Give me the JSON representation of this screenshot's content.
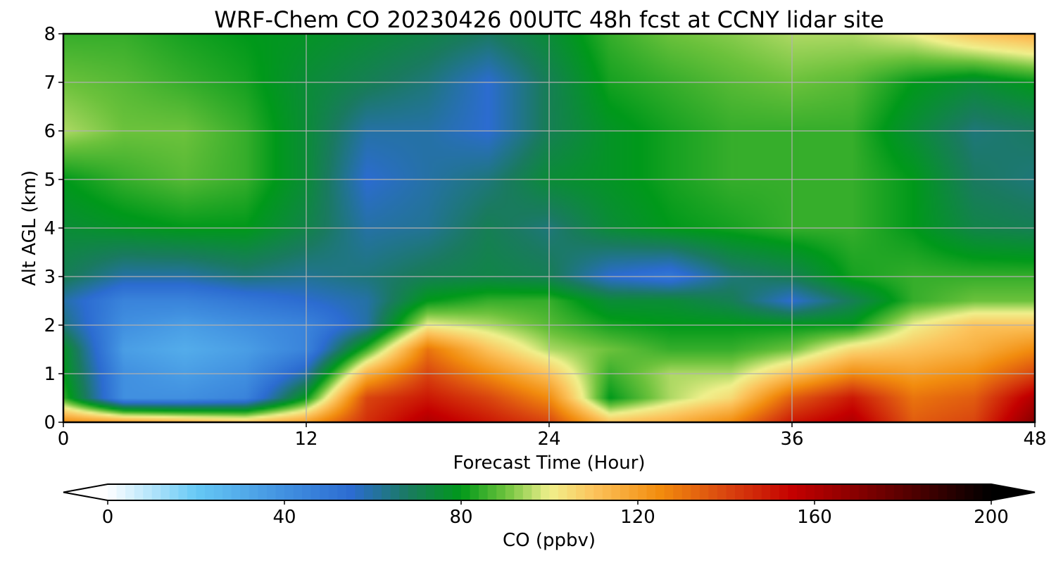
{
  "chart_data": {
    "type": "heatmap",
    "title": "WRF-Chem CO  20230426 00UTC 48h fcst at CCNY lidar site",
    "xlabel": "Forecast Time (Hour)",
    "ylabel": "Alt AGL (km)",
    "xlim": [
      0,
      48
    ],
    "ylim": [
      0,
      8
    ],
    "xticks": [
      0,
      12,
      24,
      36,
      48
    ],
    "yticks": [
      0,
      1,
      2,
      3,
      4,
      5,
      6,
      7,
      8
    ],
    "grid": true,
    "x": [
      0,
      3,
      6,
      9,
      12,
      15,
      18,
      21,
      24,
      27,
      30,
      33,
      36,
      39,
      42,
      45,
      48
    ],
    "y": [
      0,
      0.5,
      1,
      1.5,
      2,
      2.5,
      3,
      4,
      5,
      6,
      7,
      8
    ],
    "z": [
      [
        125,
        120,
        115,
        110,
        120,
        145,
        160,
        150,
        140,
        110,
        115,
        125,
        150,
        160,
        135,
        140,
        170
      ],
      [
        85,
        40,
        40,
        45,
        80,
        140,
        150,
        140,
        125,
        80,
        95,
        105,
        135,
        150,
        130,
        135,
        160
      ],
      [
        80,
        40,
        35,
        40,
        60,
        115,
        140,
        125,
        110,
        85,
        95,
        95,
        110,
        125,
        120,
        125,
        140
      ],
      [
        78,
        35,
        30,
        35,
        45,
        85,
        130,
        110,
        95,
        90,
        85,
        85,
        90,
        105,
        110,
        115,
        125
      ],
      [
        65,
        40,
        35,
        40,
        45,
        60,
        100,
        95,
        88,
        82,
        80,
        80,
        80,
        80,
        100,
        110,
        110
      ],
      [
        60,
        45,
        45,
        50,
        55,
        60,
        80,
        85,
        85,
        75,
        75,
        70,
        55,
        70,
        85,
        90,
        90
      ],
      [
        70,
        60,
        60,
        65,
        62,
        65,
        70,
        72,
        70,
        55,
        50,
        65,
        70,
        82,
        85,
        85,
        85
      ],
      [
        75,
        78,
        80,
        80,
        72,
        60,
        62,
        70,
        65,
        75,
        80,
        82,
        85,
        85,
        80,
        72,
        70
      ],
      [
        80,
        85,
        88,
        85,
        75,
        55,
        60,
        65,
        75,
        78,
        82,
        85,
        85,
        85,
        80,
        68,
        65
      ],
      [
        95,
        90,
        90,
        85,
        75,
        60,
        60,
        55,
        70,
        78,
        82,
        85,
        85,
        85,
        75,
        65,
        68
      ],
      [
        90,
        88,
        85,
        82,
        75,
        70,
        65,
        55,
        70,
        82,
        85,
        88,
        90,
        88,
        80,
        75,
        80
      ],
      [
        85,
        85,
        82,
        80,
        78,
        75,
        72,
        68,
        75,
        85,
        90,
        92,
        95,
        95,
        100,
        110,
        115
      ]
    ],
    "colorbar": {
      "label": "CO  (ppbv)",
      "min": 0,
      "max": 200,
      "ticks": [
        0,
        40,
        80,
        120,
        160,
        200
      ],
      "extend": "both",
      "colormap": [
        [
          0,
          "#ffffff"
        ],
        [
          20,
          "#66c9f5"
        ],
        [
          40,
          "#4190e0"
        ],
        [
          55,
          "#2c6cd1"
        ],
        [
          68,
          "#1a7a60"
        ],
        [
          80,
          "#00991a"
        ],
        [
          90,
          "#6cc23c"
        ],
        [
          100,
          "#f0f08c"
        ],
        [
          110,
          "#fcc35c"
        ],
        [
          125,
          "#f28c0e"
        ],
        [
          140,
          "#d9450f"
        ],
        [
          155,
          "#c40000"
        ],
        [
          175,
          "#700000"
        ],
        [
          200,
          "#000000"
        ]
      ]
    }
  }
}
